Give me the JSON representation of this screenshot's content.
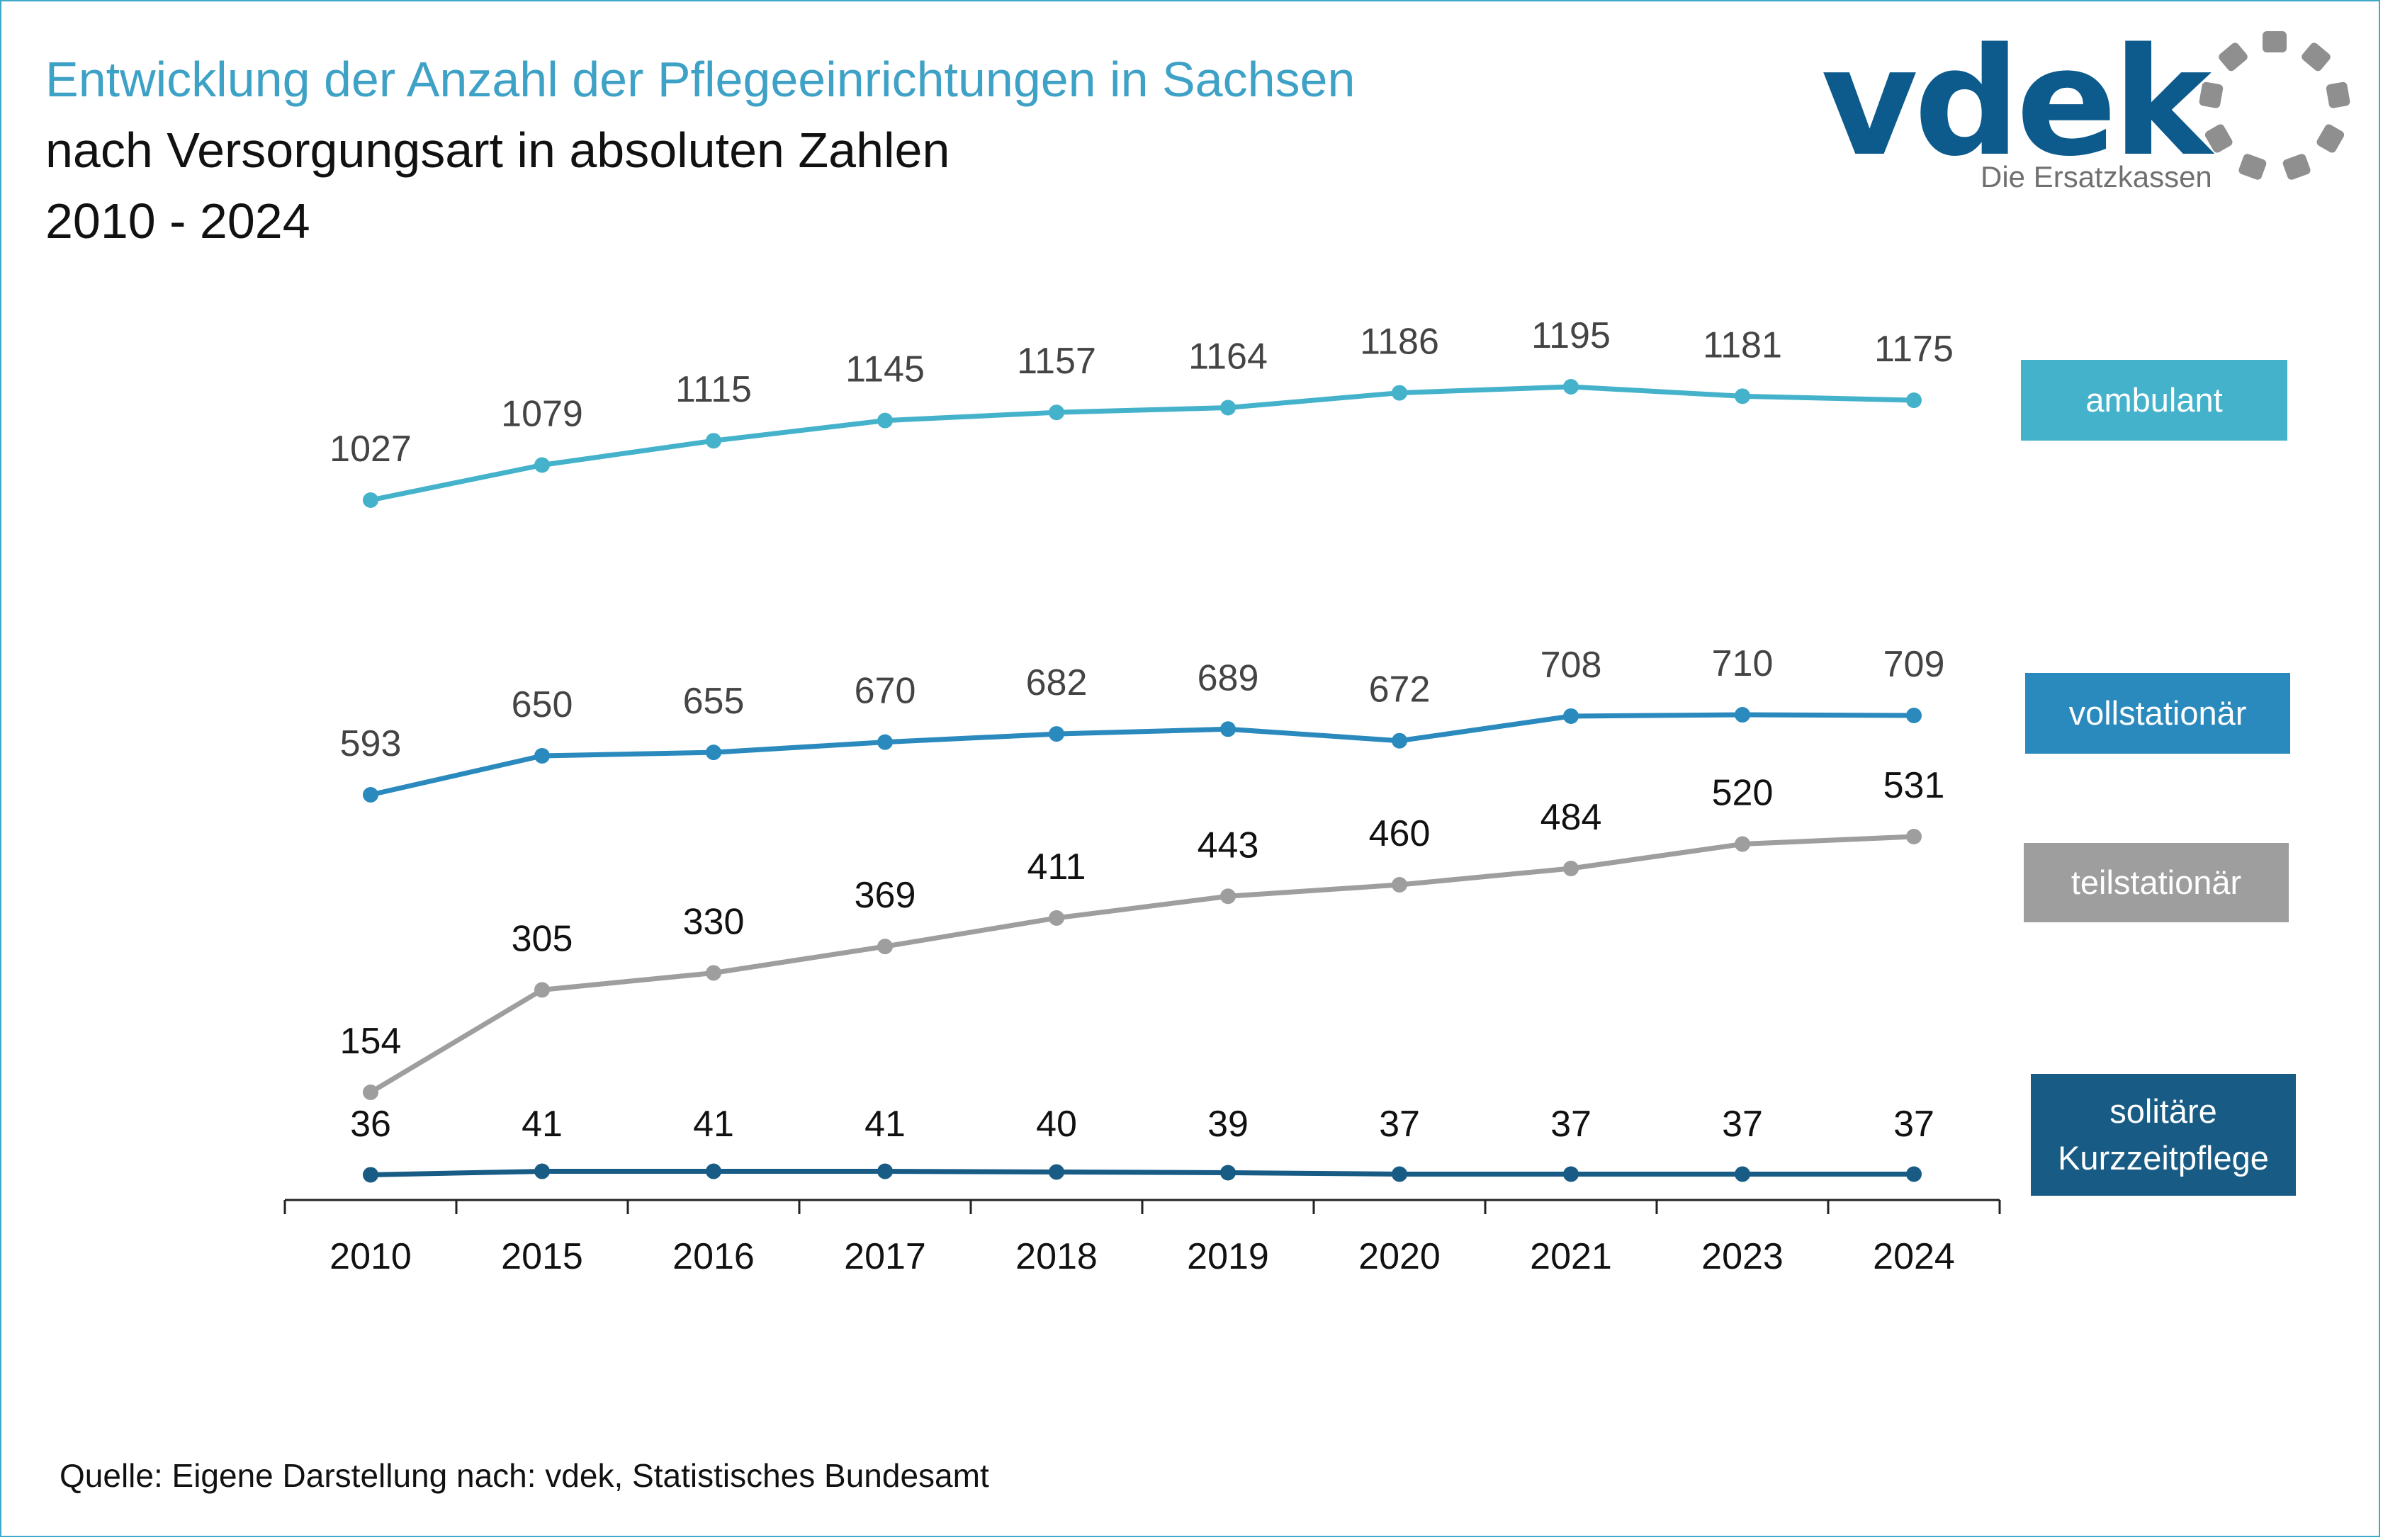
{
  "title": {
    "line1": "Entwicklung der Anzahl der Pflegeeinrichtungen in Sachsen",
    "line2": "nach Versorgungsart in absoluten Zahlen",
    "line3": "2010 - 2024"
  },
  "logo": {
    "word": "vdek",
    "subtitle": "Die Ersatzkassen"
  },
  "source": "Quelle: Eigene Darstellung nach: vdek, Statistisches Bundesamt",
  "colors": {
    "ambulant": "#45b2cc",
    "vollstationaer": "#2b8abd",
    "teilstationaer": "#9e9e9e",
    "kurzzeitpflege": "#185b84",
    "frame": "#3ea9c8",
    "title_accent": "#3ea1c6"
  },
  "legend": [
    {
      "label": "ambulant",
      "color": "#45b2cc"
    },
    {
      "label": "vollstationär",
      "color": "#2b8abd"
    },
    {
      "label": "teilstationär",
      "color": "#9e9e9e"
    },
    {
      "label": "solitäre Kurzzeitpflege",
      "color": "#185b84"
    }
  ],
  "chart_data": {
    "type": "line",
    "categories": [
      "2010",
      "2015",
      "2016",
      "2017",
      "2018",
      "2019",
      "2020",
      "2021",
      "2023",
      "2024"
    ],
    "series": [
      {
        "name": "ambulant",
        "values": [
          1027,
          1079,
          1115,
          1145,
          1157,
          1164,
          1186,
          1195,
          1181,
          1175
        ]
      },
      {
        "name": "vollstationär",
        "values": [
          593,
          650,
          655,
          670,
          682,
          689,
          672,
          708,
          710,
          709
        ]
      },
      {
        "name": "teilstationär",
        "values": [
          154,
          305,
          330,
          369,
          411,
          443,
          460,
          484,
          520,
          531
        ]
      },
      {
        "name": "solitäre Kurzzeitpflege",
        "values": [
          36,
          41,
          41,
          41,
          40,
          39,
          37,
          37,
          37,
          37
        ]
      }
    ],
    "data_labels": true,
    "grid": false,
    "legend_placement": "right",
    "title": "Entwicklung der Anzahl der Pflegeeinrichtungen in Sachsen"
  }
}
